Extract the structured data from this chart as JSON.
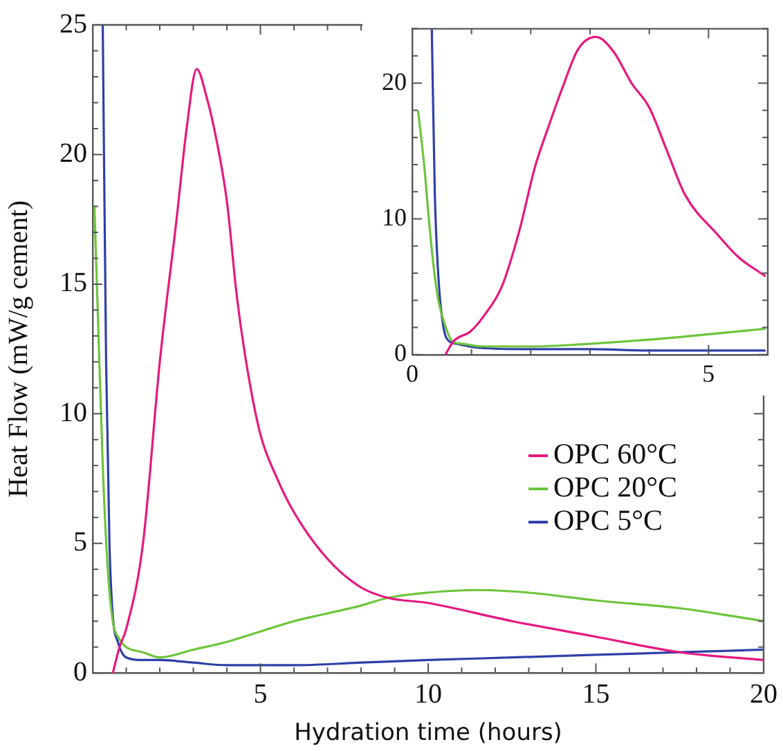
{
  "chart_data": [
    {
      "type": "line",
      "xlabel": "Hydration time (hours)",
      "ylabel": "Heat Flow (mW/g cement)",
      "xlim": [
        0,
        20
      ],
      "ylim": [
        0,
        25
      ],
      "xticks": [
        {
          "value": 0,
          "label": null
        },
        {
          "value": 1,
          "label": null
        },
        {
          "value": 2,
          "label": null
        },
        {
          "value": 3,
          "label": null
        },
        {
          "value": 4,
          "label": null
        },
        5,
        {
          "value": 6,
          "label": null
        },
        {
          "value": 7,
          "label": null
        },
        {
          "value": 8,
          "label": null
        },
        {
          "value": 9,
          "label": null
        },
        10,
        {
          "value": 11,
          "label": null
        },
        {
          "value": 12,
          "label": null
        },
        {
          "value": 13,
          "label": null
        },
        {
          "value": 14,
          "label": null
        },
        15,
        {
          "value": 16,
          "label": null
        },
        {
          "value": 17,
          "label": null
        },
        {
          "value": 18,
          "label": null
        },
        {
          "value": 19,
          "label": null
        },
        20
      ],
      "yticks": [
        0,
        {
          "value": 1,
          "label": null
        },
        {
          "value": 2,
          "label": null
        },
        {
          "value": 3,
          "label": null
        },
        {
          "value": 4,
          "label": null
        },
        5,
        {
          "value": 6,
          "label": null
        },
        {
          "value": 7,
          "label": null
        },
        {
          "value": 8,
          "label": null
        },
        {
          "value": 9,
          "label": null
        },
        10,
        {
          "value": 11,
          "label": null
        },
        {
          "value": 12,
          "label": null
        },
        {
          "value": 13,
          "label": null
        },
        {
          "value": 14,
          "label": null
        },
        15,
        {
          "value": 16,
          "label": null
        },
        {
          "value": 17,
          "label": null
        },
        {
          "value": 18,
          "label": null
        },
        {
          "value": 19,
          "label": null
        },
        20,
        {
          "value": 21,
          "label": null
        },
        {
          "value": 22,
          "label": null
        },
        {
          "value": 23,
          "label": null
        },
        {
          "value": 24,
          "label": null
        },
        25
      ],
      "legend": "right",
      "grid": false,
      "marker": "none",
      "line_style": "solid",
      "series": [
        {
          "name": "OPC 60°C",
          "color": "#e8177f",
          "x": [
            0.6,
            0.8,
            1.0,
            1.5,
            2.0,
            2.5,
            2.8,
            3.1,
            3.4,
            3.7,
            4.0,
            4.3,
            4.6,
            5.0,
            5.5,
            6.0,
            7.0,
            8.0,
            8.8,
            10,
            12.5,
            15,
            17.5,
            20
          ],
          "values": [
            0,
            1,
            1.7,
            5,
            12,
            17.5,
            21,
            23.3,
            22.2,
            20.5,
            18.2,
            14.5,
            11.8,
            9.2,
            7.5,
            6.2,
            4.4,
            3.3,
            2.9,
            2.7,
            2.0,
            1.4,
            0.8,
            0.5
          ]
        },
        {
          "name": "OPC 20°C",
          "color": "#6cc43a",
          "x": [
            0.05,
            0.15,
            0.3,
            0.45,
            0.6,
            0.8,
            1,
            1.5,
            2,
            3,
            4,
            5,
            6,
            7,
            8,
            8.8,
            10,
            11.5,
            13,
            15,
            17.5,
            20
          ],
          "values": [
            18,
            14,
            8,
            4,
            2,
            1.3,
            1.0,
            0.8,
            0.6,
            0.9,
            1.2,
            1.6,
            2.0,
            2.3,
            2.6,
            2.9,
            3.1,
            3.2,
            3.1,
            2.8,
            2.5,
            2.0
          ]
        },
        {
          "name": "OPC 5°C",
          "color": "#2e3fa8",
          "x": [
            0.3,
            0.4,
            0.5,
            0.6,
            0.75,
            1,
            1.5,
            2,
            3,
            4,
            6,
            8,
            10,
            12.5,
            15,
            17.5,
            20
          ],
          "values": [
            25,
            12,
            5,
            2.2,
            1.2,
            0.6,
            0.5,
            0.5,
            0.4,
            0.3,
            0.3,
            0.4,
            0.5,
            0.6,
            0.7,
            0.8,
            0.9
          ]
        }
      ]
    },
    {
      "type": "line",
      "xlim": [
        0,
        6
      ],
      "ylim": [
        0,
        24
      ],
      "xticks": [
        0,
        {
          "value": 1,
          "label": null
        },
        {
          "value": 2,
          "label": null
        },
        {
          "value": 3,
          "label": null
        },
        {
          "value": 4,
          "label": null
        },
        5,
        {
          "value": 6,
          "label": null
        }
      ],
      "yticks": [
        0,
        {
          "value": 2,
          "label": null
        },
        {
          "value": 4,
          "label": null
        },
        {
          "value": 6,
          "label": null
        },
        {
          "value": 8,
          "label": null
        },
        10,
        {
          "value": 12,
          "label": null
        },
        {
          "value": 14,
          "label": null
        },
        {
          "value": 16,
          "label": null
        },
        {
          "value": 18,
          "label": null
        },
        20,
        {
          "value": 22,
          "label": null
        },
        {
          "value": 24,
          "label": null
        }
      ],
      "grid": false,
      "marker": "none",
      "line_style": "solid",
      "series": [
        {
          "color": "#e8177f",
          "x": [
            0.56,
            0.7,
            0.98,
            1.2,
            1.51,
            1.8,
            2.07,
            2.3,
            2.53,
            2.8,
            3.1,
            3.4,
            3.7,
            4.0,
            4.3,
            4.6,
            5.16,
            5.5,
            5.95
          ],
          "values": [
            0,
            1.0,
            1.7,
            2.8,
            5,
            9,
            13.8,
            16.8,
            19.6,
            22.5,
            23.4,
            22.3,
            20.0,
            18.2,
            15.0,
            11.8,
            8.8,
            7.2,
            5.8
          ]
        },
        {
          "color": "#6cc43a",
          "x": [
            0.1,
            0.2,
            0.28,
            0.36,
            0.44,
            0.55,
            0.67,
            0.85,
            1.2,
            2,
            3,
            4,
            5,
            5.95
          ],
          "values": [
            17.9,
            14,
            10,
            6.5,
            4,
            2.2,
            1.0,
            0.8,
            0.6,
            0.6,
            0.8,
            1.1,
            1.5,
            1.9
          ]
        },
        {
          "color": "#2e3fa8",
          "x": [
            0.33,
            0.38,
            0.44,
            0.5,
            0.58,
            0.75,
            1.14,
            2,
            3,
            4,
            5,
            5.95
          ],
          "values": [
            24,
            12,
            5.8,
            2.8,
            1.2,
            0.8,
            0.5,
            0.4,
            0.4,
            0.3,
            0.3,
            0.3
          ]
        }
      ]
    }
  ]
}
